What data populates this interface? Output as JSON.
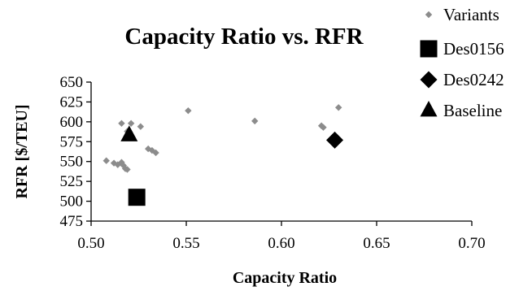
{
  "chart_data": {
    "type": "scatter",
    "title": "Capacity Ratio vs. RFR",
    "xlabel": "Capacity Ratio",
    "ylabel": "RFR [$/TEU]",
    "xlim": [
      0.5,
      0.7
    ],
    "ylim": [
      475,
      650
    ],
    "x_ticks": [
      "0.50",
      "0.55",
      "0.60",
      "0.65",
      "0.70"
    ],
    "y_ticks": [
      "475",
      "500",
      "525",
      "550",
      "575",
      "600",
      "625",
      "650"
    ],
    "grid": false,
    "legend_position": "top-right",
    "series": [
      {
        "name": "Variants",
        "marker": "diamond",
        "size": "small",
        "color": "#8c8c8c",
        "points": [
          {
            "x": 0.508,
            "y": 551
          },
          {
            "x": 0.512,
            "y": 548
          },
          {
            "x": 0.514,
            "y": 546
          },
          {
            "x": 0.516,
            "y": 549
          },
          {
            "x": 0.517,
            "y": 545
          },
          {
            "x": 0.518,
            "y": 541
          },
          {
            "x": 0.519,
            "y": 540
          },
          {
            "x": 0.516,
            "y": 598
          },
          {
            "x": 0.519,
            "y": 588
          },
          {
            "x": 0.521,
            "y": 598
          },
          {
            "x": 0.526,
            "y": 594
          },
          {
            "x": 0.53,
            "y": 566
          },
          {
            "x": 0.532,
            "y": 564
          },
          {
            "x": 0.534,
            "y": 561
          },
          {
            "x": 0.551,
            "y": 614
          },
          {
            "x": 0.586,
            "y": 601
          },
          {
            "x": 0.621,
            "y": 595
          },
          {
            "x": 0.622,
            "y": 593
          },
          {
            "x": 0.63,
            "y": 618
          }
        ]
      },
      {
        "name": "Des0156",
        "marker": "square",
        "size": "large",
        "color": "#000000",
        "points": [
          {
            "x": 0.524,
            "y": 505
          }
        ]
      },
      {
        "name": "Des0242",
        "marker": "diamond",
        "size": "large",
        "color": "#000000",
        "points": [
          {
            "x": 0.628,
            "y": 577
          }
        ]
      },
      {
        "name": "Baseline",
        "marker": "triangle",
        "size": "large",
        "color": "#000000",
        "points": [
          {
            "x": 0.52,
            "y": 583
          }
        ]
      }
    ]
  }
}
